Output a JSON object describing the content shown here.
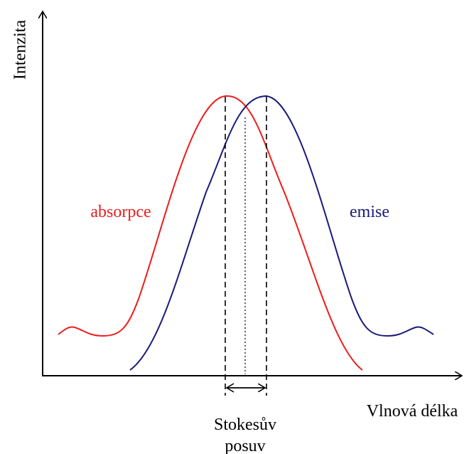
{
  "y_axis_label": "Intenzita",
  "x_axis_label": "Vlnová délka",
  "curves": {
    "absorption": "absorpce",
    "emission": "emise"
  },
  "shift_label": {
    "line1": "Stokesův",
    "line2": "posuv"
  }
}
